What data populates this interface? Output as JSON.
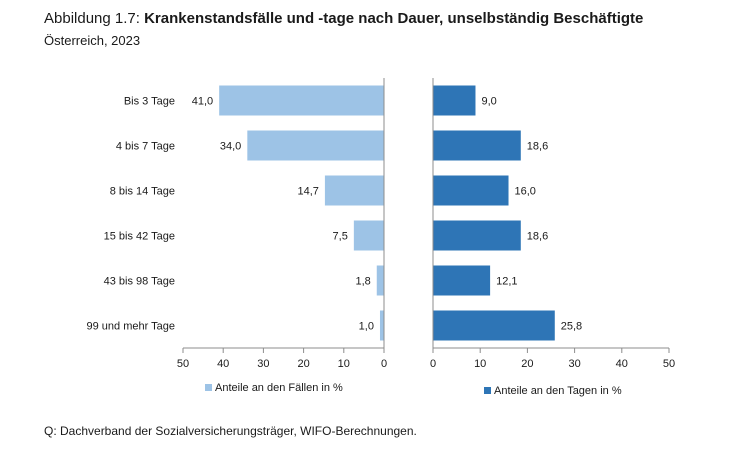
{
  "figure": {
    "label": "Abbildung 1.7:",
    "title": "Krankenstandsfälle und -tage nach Dauer, unselbständig Beschäftigte",
    "subtitle": "Österreich, 2023",
    "source": "Q: Dachverband der Sozialversicherungsträger, WIFO-Berechnungen."
  },
  "colors": {
    "faelle": "#9dc3e6",
    "tage": "#2e75b6",
    "axis": "#8c8c8c"
  },
  "chart_data": [
    {
      "type": "bar",
      "orientation": "horizontal",
      "direction": "reversed",
      "categories": [
        "Bis 3 Tage",
        "4 bis 7 Tage",
        "8 bis 14 Tage",
        "15 bis 42 Tage",
        "43 bis 98 Tage",
        "99 und mehr Tage"
      ],
      "series": [
        {
          "name": "Anteile an den Fällen in %",
          "values": [
            41.0,
            34.0,
            14.7,
            7.5,
            1.8,
            1.0
          ],
          "data_labels": [
            "41,0",
            "34,0",
            "14,7",
            "7,5",
            "1,8",
            "1,0"
          ]
        }
      ],
      "xlim": [
        0,
        50
      ],
      "ticks": [
        "50",
        "40",
        "30",
        "20",
        "10",
        "0"
      ],
      "legend": "bottom"
    },
    {
      "type": "bar",
      "orientation": "horizontal",
      "categories": [
        "Bis 3 Tage",
        "4 bis 7 Tage",
        "8 bis 14 Tage",
        "15 bis 42 Tage",
        "43 bis 98 Tage",
        "99 und mehr Tage"
      ],
      "series": [
        {
          "name": "Anteile an den Tagen in %",
          "values": [
            9.0,
            18.6,
            16.0,
            18.6,
            12.1,
            25.8
          ],
          "data_labels": [
            "9,0",
            "18,6",
            "16,0",
            "18,6",
            "12,1",
            "25,8"
          ]
        }
      ],
      "xlim": [
        0,
        50
      ],
      "ticks": [
        "0",
        "10",
        "20",
        "30",
        "40",
        "50"
      ],
      "legend": "bottom"
    }
  ]
}
